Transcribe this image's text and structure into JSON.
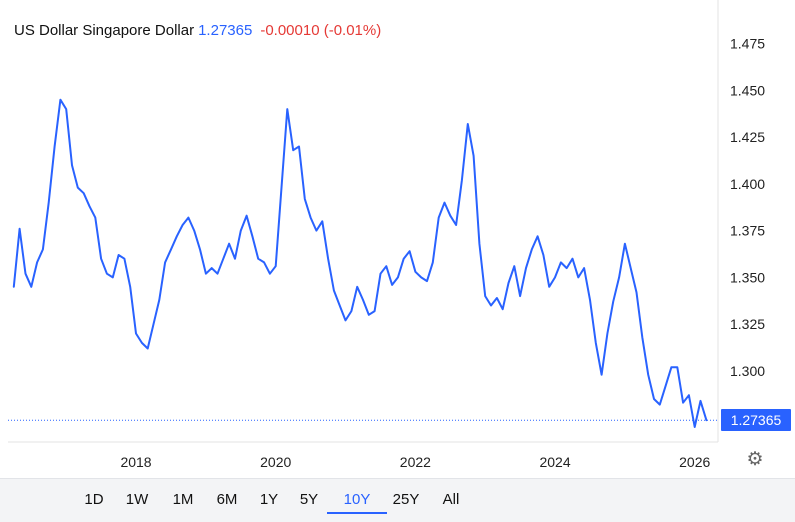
{
  "header": {
    "name": "US Dollar Singapore Dollar",
    "price": "1.27365",
    "change": "-0.00010 (-0.01%)"
  },
  "colors": {
    "line": "#2962ff",
    "positive": "#2962ff",
    "negative": "#e53935",
    "grid": "#e6e6e6"
  },
  "range_buttons": [
    "1D",
    "1W",
    "1M",
    "6M",
    "1Y",
    "5Y",
    "10Y",
    "25Y",
    "All"
  ],
  "active_range": "10Y",
  "settings_icon": "gear-icon",
  "chart_data": {
    "type": "line",
    "title": "",
    "xlabel": "",
    "ylabel": "",
    "x_ticks": [
      "2018",
      "2020",
      "2022",
      "2024",
      "2026"
    ],
    "y_ticks": [
      "1.475",
      "1.450",
      "1.425",
      "1.400",
      "1.375",
      "1.350",
      "1.325",
      "1.300"
    ],
    "ylim": [
      1.262,
      1.478
    ],
    "xlim": [
      "2016-03",
      "2026-05"
    ],
    "last_price_label": "1.27365",
    "last_value": 1.27365,
    "grid": false,
    "series": [
      {
        "x": [
          "2016-04",
          "2016-05",
          "2016-06",
          "2016-07",
          "2016-08",
          "2016-09",
          "2016-10",
          "2016-11",
          "2016-12",
          "2017-01",
          "2017-02",
          "2017-03",
          "2017-04",
          "2017-05",
          "2017-06",
          "2017-07",
          "2017-08",
          "2017-09",
          "2017-10",
          "2017-11",
          "2017-12",
          "2018-01",
          "2018-02",
          "2018-03",
          "2018-04",
          "2018-05",
          "2018-06",
          "2018-07",
          "2018-08",
          "2018-09",
          "2018-10",
          "2018-11",
          "2018-12",
          "2019-01",
          "2019-02",
          "2019-03",
          "2019-04",
          "2019-05",
          "2019-06",
          "2019-07",
          "2019-08",
          "2019-09",
          "2019-10",
          "2019-11",
          "2019-12",
          "2020-01",
          "2020-02",
          "2020-03",
          "2020-04",
          "2020-05",
          "2020-06",
          "2020-07",
          "2020-08",
          "2020-09",
          "2020-10",
          "2020-11",
          "2020-12",
          "2021-01",
          "2021-02",
          "2021-03",
          "2021-04",
          "2021-05",
          "2021-06",
          "2021-07",
          "2021-08",
          "2021-09",
          "2021-10",
          "2021-11",
          "2021-12",
          "2022-01",
          "2022-02",
          "2022-03",
          "2022-04",
          "2022-05",
          "2022-06",
          "2022-07",
          "2022-08",
          "2022-09",
          "2022-10",
          "2022-11",
          "2022-12",
          "2023-01",
          "2023-02",
          "2023-03",
          "2023-04",
          "2023-05",
          "2023-06",
          "2023-07",
          "2023-08",
          "2023-09",
          "2023-10",
          "2023-11",
          "2023-12",
          "2024-01",
          "2024-02",
          "2024-03",
          "2024-04",
          "2024-05",
          "2024-06",
          "2024-07",
          "2024-08",
          "2024-09",
          "2024-10",
          "2024-11",
          "2024-12",
          "2025-01",
          "2025-02",
          "2025-03",
          "2025-04",
          "2025-05",
          "2025-06",
          "2025-07",
          "2025-08",
          "2025-09",
          "2025-10",
          "2025-11",
          "2025-12",
          "2026-01",
          "2026-02",
          "2026-03"
        ],
        "values": [
          1.345,
          1.376,
          1.352,
          1.345,
          1.358,
          1.365,
          1.39,
          1.42,
          1.445,
          1.44,
          1.41,
          1.398,
          1.395,
          1.388,
          1.382,
          1.36,
          1.352,
          1.35,
          1.362,
          1.36,
          1.345,
          1.32,
          1.315,
          1.312,
          1.325,
          1.338,
          1.358,
          1.365,
          1.372,
          1.378,
          1.382,
          1.375,
          1.365,
          1.352,
          1.355,
          1.352,
          1.36,
          1.368,
          1.36,
          1.375,
          1.383,
          1.372,
          1.36,
          1.358,
          1.352,
          1.356,
          1.398,
          1.44,
          1.418,
          1.42,
          1.392,
          1.382,
          1.375,
          1.38,
          1.36,
          1.343,
          1.335,
          1.327,
          1.332,
          1.345,
          1.338,
          1.33,
          1.332,
          1.352,
          1.356,
          1.346,
          1.35,
          1.36,
          1.364,
          1.353,
          1.35,
          1.348,
          1.358,
          1.382,
          1.39,
          1.383,
          1.378,
          1.402,
          1.432,
          1.415,
          1.368,
          1.34,
          1.335,
          1.339,
          1.333,
          1.347,
          1.356,
          1.34,
          1.355,
          1.365,
          1.372,
          1.362,
          1.345,
          1.35,
          1.358,
          1.355,
          1.36,
          1.35,
          1.355,
          1.338,
          1.315,
          1.298,
          1.32,
          1.337,
          1.35,
          1.368,
          1.355,
          1.342,
          1.318,
          1.298,
          1.285,
          1.282,
          1.292,
          1.302,
          1.302,
          1.283,
          1.287,
          1.27,
          1.284,
          1.27365
        ]
      }
    ]
  }
}
